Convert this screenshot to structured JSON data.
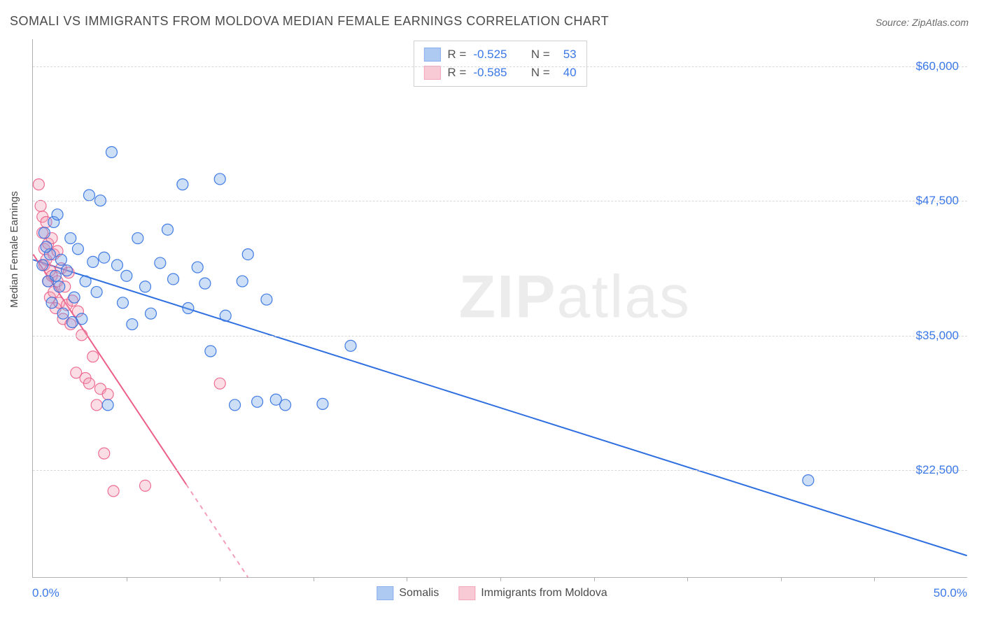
{
  "title": "SOMALI VS IMMIGRANTS FROM MOLDOVA MEDIAN FEMALE EARNINGS CORRELATION CHART",
  "source": "Source: ZipAtlas.com",
  "ylabel": "Median Female Earnings",
  "watermark_a": "ZIP",
  "watermark_b": "atlas",
  "chart": {
    "type": "scatter-with-regression",
    "background_color": "#ffffff",
    "grid_color": "#d8d8d8",
    "axis_color": "#b0b0b0",
    "tick_label_color": "#3b78e7",
    "axis_label_color": "#4a4a4a",
    "title_color": "#4a4a4a",
    "title_fontsize": 18,
    "label_fontsize": 15,
    "tick_fontsize": 17,
    "xlim": [
      0,
      50
    ],
    "ylim": [
      12500,
      62500
    ],
    "x_min_label": "0.0%",
    "x_max_label": "50.0%",
    "y_ticks": [
      22500,
      35000,
      47500,
      60000
    ],
    "y_tick_labels": [
      "$22,500",
      "$35,000",
      "$47,500",
      "$60,000"
    ],
    "x_tick_positions": [
      5,
      10,
      15,
      20,
      25,
      30,
      35,
      40,
      45
    ],
    "marker_radius": 8,
    "marker_fill_opacity": 0.35,
    "marker_stroke_opacity": 0.9,
    "line_width": 2,
    "series": [
      {
        "id": "somalis",
        "label": "Somalis",
        "color": "#6fa0e8",
        "line_color": "#2f6fe0",
        "R": "-0.525",
        "N": "53",
        "regression": {
          "x1": 0,
          "y1": 42000,
          "x2": 50,
          "y2": 14500,
          "dash_beyond_x": 50
        },
        "points": [
          [
            0.5,
            41500
          ],
          [
            0.6,
            44500
          ],
          [
            0.8,
            40000
          ],
          [
            0.9,
            42500
          ],
          [
            1.0,
            38000
          ],
          [
            1.1,
            45500
          ],
          [
            1.2,
            40500
          ],
          [
            1.4,
            39500
          ],
          [
            1.5,
            42000
          ],
          [
            1.6,
            37000
          ],
          [
            1.8,
            41000
          ],
          [
            2.0,
            44000
          ],
          [
            2.2,
            38500
          ],
          [
            2.4,
            43000
          ],
          [
            2.6,
            36500
          ],
          [
            2.8,
            40000
          ],
          [
            3.0,
            48000
          ],
          [
            3.2,
            41800
          ],
          [
            3.4,
            39000
          ],
          [
            3.6,
            47500
          ],
          [
            3.8,
            42200
          ],
          [
            4.0,
            28500
          ],
          [
            4.2,
            52000
          ],
          [
            4.5,
            41500
          ],
          [
            4.8,
            38000
          ],
          [
            5.0,
            40500
          ],
          [
            5.3,
            36000
          ],
          [
            5.6,
            44000
          ],
          [
            6.0,
            39500
          ],
          [
            6.3,
            37000
          ],
          [
            6.8,
            41700
          ],
          [
            7.2,
            44800
          ],
          [
            7.5,
            40200
          ],
          [
            8.0,
            49000
          ],
          [
            8.3,
            37500
          ],
          [
            8.8,
            41300
          ],
          [
            9.2,
            39800
          ],
          [
            9.5,
            33500
          ],
          [
            10.0,
            49500
          ],
          [
            10.3,
            36800
          ],
          [
            10.8,
            28500
          ],
          [
            11.2,
            40000
          ],
          [
            11.5,
            42500
          ],
          [
            12.0,
            28800
          ],
          [
            12.5,
            38300
          ],
          [
            13.0,
            29000
          ],
          [
            13.5,
            28500
          ],
          [
            15.5,
            28600
          ],
          [
            17.0,
            34000
          ],
          [
            41.5,
            21500
          ],
          [
            0.7,
            43200
          ],
          [
            1.3,
            46200
          ],
          [
            2.1,
            36200
          ]
        ]
      },
      {
        "id": "moldova",
        "label": "Immigrants from Moldova",
        "color": "#f29fb5",
        "line_color": "#ec5f88",
        "R": "-0.585",
        "N": "40",
        "regression": {
          "x1": 0,
          "y1": 42500,
          "x2": 11.5,
          "y2": 12500,
          "dash_beyond_x": 8.2
        },
        "points": [
          [
            0.3,
            49000
          ],
          [
            0.4,
            47000
          ],
          [
            0.5,
            46000
          ],
          [
            0.5,
            44500
          ],
          [
            0.6,
            43000
          ],
          [
            0.6,
            41500
          ],
          [
            0.7,
            45500
          ],
          [
            0.7,
            42000
          ],
          [
            0.8,
            40000
          ],
          [
            0.8,
            43500
          ],
          [
            0.9,
            41000
          ],
          [
            0.9,
            38500
          ],
          [
            1.0,
            40500
          ],
          [
            1.0,
            44000
          ],
          [
            1.1,
            39000
          ],
          [
            1.1,
            42500
          ],
          [
            1.2,
            37500
          ],
          [
            1.3,
            40000
          ],
          [
            1.3,
            42800
          ],
          [
            1.4,
            38000
          ],
          [
            1.5,
            41200
          ],
          [
            1.6,
            36500
          ],
          [
            1.7,
            39500
          ],
          [
            1.8,
            37800
          ],
          [
            1.9,
            40800
          ],
          [
            2.0,
            36000
          ],
          [
            2.1,
            38200
          ],
          [
            2.3,
            31500
          ],
          [
            2.4,
            37200
          ],
          [
            2.6,
            35000
          ],
          [
            2.8,
            31000
          ],
          [
            3.0,
            30500
          ],
          [
            3.2,
            33000
          ],
          [
            3.4,
            28500
          ],
          [
            3.6,
            30000
          ],
          [
            3.8,
            24000
          ],
          [
            4.0,
            29500
          ],
          [
            4.3,
            20500
          ],
          [
            6.0,
            21000
          ],
          [
            10.0,
            30500
          ]
        ]
      }
    ],
    "stat_legend": {
      "border_color": "#cfcfcf",
      "bg_color": "#ffffff",
      "label_color": "#555555",
      "value_color": "#3b78e7",
      "R_label": "R =",
      "N_label": "N ="
    },
    "bottom_legend_fontsize": 16
  }
}
